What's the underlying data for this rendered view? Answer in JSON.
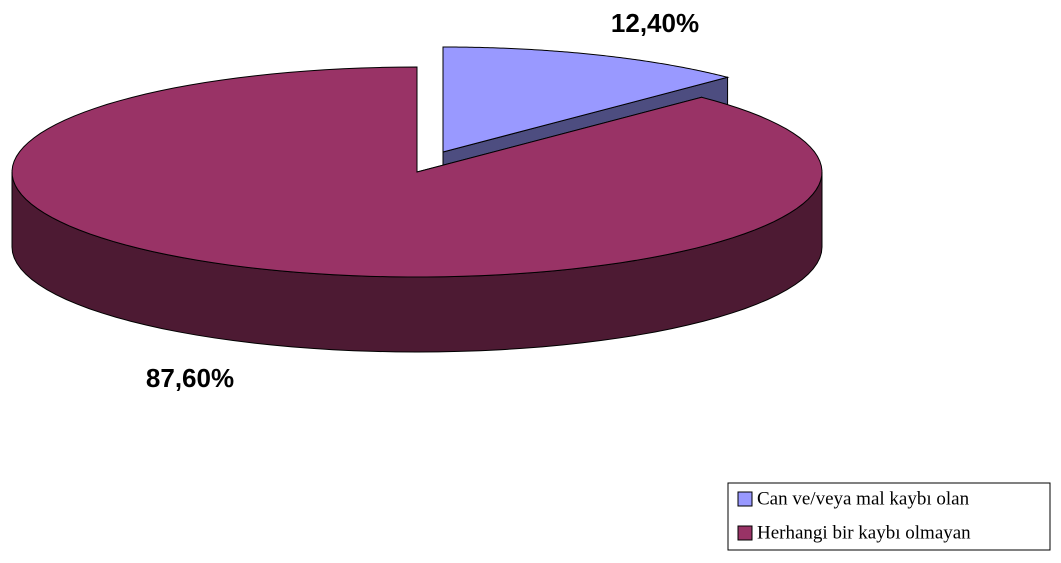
{
  "chart_data": {
    "type": "pie",
    "categories": [
      "Can ve/veya mal kaybı olan",
      "Herhangi bir kaybı olmayan"
    ],
    "values": [
      12.4,
      87.6
    ],
    "value_labels": [
      "12,40%",
      "87,60%"
    ],
    "colors": [
      "#9999ff",
      "#993366"
    ],
    "legend": "bottom-right"
  }
}
